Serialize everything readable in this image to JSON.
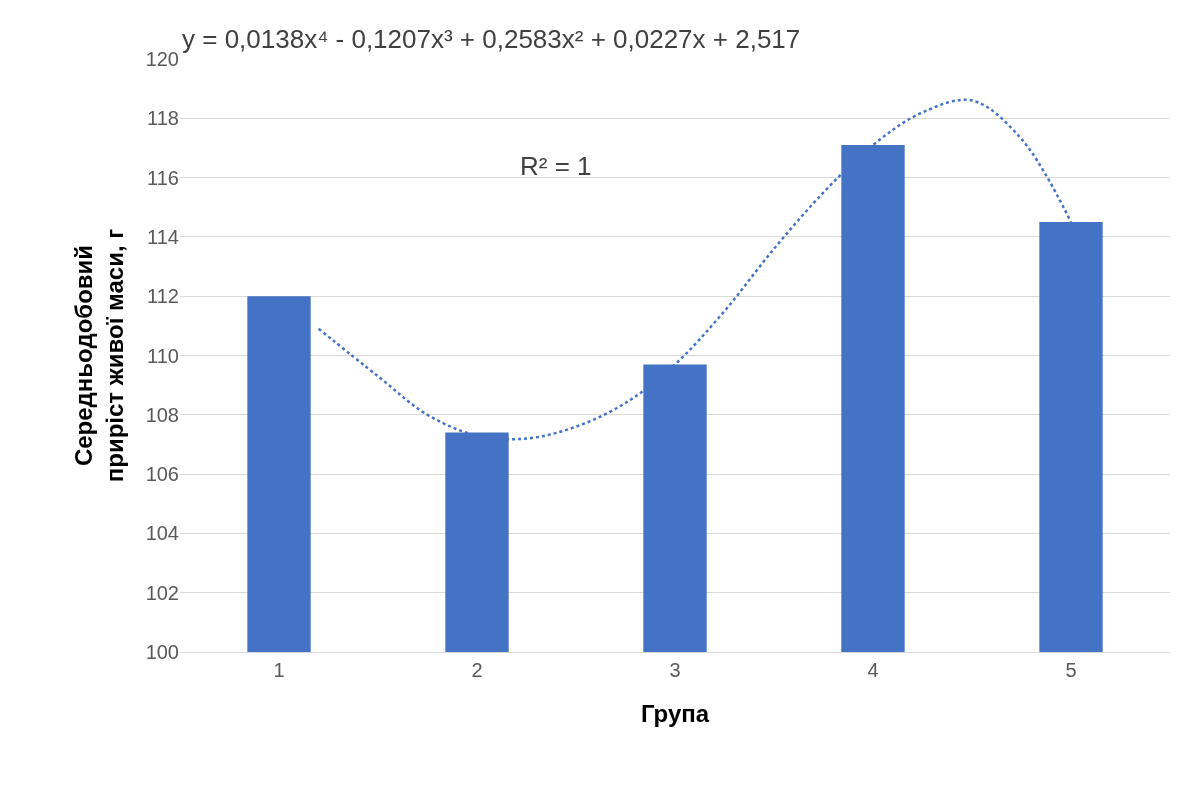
{
  "chart_data": {
    "type": "bar",
    "xlabel": "Група",
    "ylabel": "Середньодобовий приріст живої маси, г",
    "x": [
      1,
      2,
      3,
      4,
      5
    ],
    "xlim": [
      0.5,
      5.5
    ],
    "xticks": [
      1,
      2,
      3,
      4,
      5
    ],
    "series": [
      {
        "color": "#4472c4",
        "values": [
          112,
          107.4,
          109.7,
          117.1,
          114.5
        ]
      },
      {
        "type": "line",
        "color": "#4472c4",
        "line_style": "dotted",
        "marker": "none",
        "x": [
          1.2,
          1.5,
          1.75,
          2,
          2.25,
          2.5,
          2.75,
          3,
          3.25,
          3.5,
          3.75,
          4,
          4.25,
          4.5,
          4.75,
          5
        ],
        "values": [
          110.9,
          109.3,
          108.0,
          107.3,
          107.2,
          107.6,
          108.4,
          109.7,
          111.5,
          113.6,
          115.5,
          117.1,
          118.2,
          118.6,
          117.3,
          114.5
        ]
      }
    ],
    "ylim": [
      100,
      120
    ],
    "yticks": [
      100,
      102,
      104,
      106,
      108,
      110,
      112,
      114,
      116,
      118,
      120
    ],
    "grid": "y",
    "annotations": [
      "y = 0,0138x⁴ - 0,1207x³ + 0,2583x² + 0,0227x + 2,517",
      "R² = 1"
    ]
  }
}
